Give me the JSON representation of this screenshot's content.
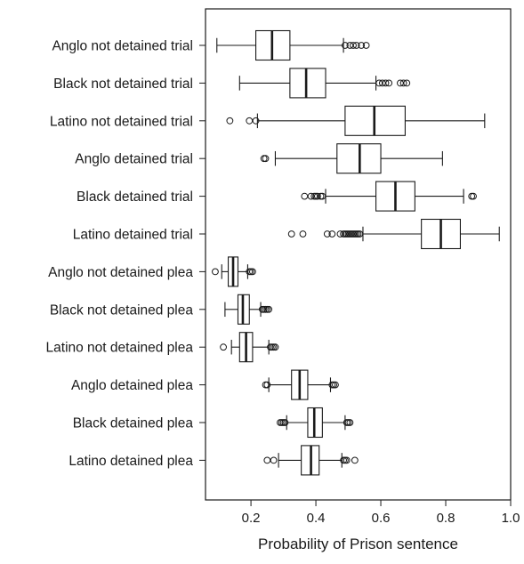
{
  "chart_data": {
    "type": "boxplot",
    "orientation": "horizontal",
    "title": "",
    "xlabel": "Probability of Prison sentence",
    "ylabel": "",
    "xlim": [
      0.06,
      1.0
    ],
    "xticks": [
      0.2,
      0.4,
      0.6,
      0.8,
      1.0
    ],
    "xtick_labels": [
      "0.2",
      "0.4",
      "0.6",
      "0.8",
      "1.0"
    ],
    "grid": false,
    "legend": "none",
    "box_fill": "#ffffff",
    "line_color": "#1a1a1a",
    "categories": [
      "Anglo not detained trial",
      "Black not detained trial",
      "Latino not detained trial",
      "Anglo detained trial",
      "Black detained trial",
      "Latino detained trial",
      "Anglo not detained plea",
      "Black not detained plea",
      "Latino not detained plea",
      "Anglo detained plea",
      "Black detained plea",
      "Latino detained plea"
    ],
    "boxes": [
      {
        "whisker_low": 0.095,
        "q1": 0.215,
        "median": 0.265,
        "q3": 0.32,
        "whisker_high": 0.485,
        "outliers": [
          0.49,
          0.505,
          0.515,
          0.525,
          0.54,
          0.555
        ]
      },
      {
        "whisker_low": 0.165,
        "q1": 0.32,
        "median": 0.37,
        "q3": 0.43,
        "whisker_high": 0.585,
        "outliers": [
          0.595,
          0.605,
          0.615,
          0.625,
          0.66,
          0.67,
          0.68
        ]
      },
      {
        "whisker_low": 0.22,
        "q1": 0.49,
        "median": 0.58,
        "q3": 0.675,
        "whisker_high": 0.92,
        "outliers": [
          0.135,
          0.195,
          0.215
        ]
      },
      {
        "whisker_low": 0.275,
        "q1": 0.465,
        "median": 0.535,
        "q3": 0.6,
        "whisker_high": 0.79,
        "outliers": [
          0.24,
          0.245
        ]
      },
      {
        "whisker_low": 0.43,
        "q1": 0.585,
        "median": 0.645,
        "q3": 0.705,
        "whisker_high": 0.855,
        "outliers": [
          0.365,
          0.385,
          0.395,
          0.4,
          0.405,
          0.415,
          0.42,
          0.88,
          0.885
        ]
      },
      {
        "whisker_low": 0.545,
        "q1": 0.725,
        "median": 0.785,
        "q3": 0.845,
        "whisker_high": 0.965,
        "outliers": [
          0.325,
          0.36,
          0.435,
          0.45,
          0.475,
          0.485,
          0.49,
          0.495,
          0.5,
          0.505,
          0.51,
          0.515,
          0.52,
          0.525,
          0.53,
          0.535
        ]
      },
      {
        "whisker_low": 0.11,
        "q1": 0.13,
        "median": 0.145,
        "q3": 0.16,
        "whisker_high": 0.19,
        "outliers": [
          0.09,
          0.195,
          0.2,
          0.205
        ]
      },
      {
        "whisker_low": 0.12,
        "q1": 0.16,
        "median": 0.175,
        "q3": 0.195,
        "whisker_high": 0.23,
        "outliers": [
          0.235,
          0.24,
          0.245,
          0.25,
          0.255
        ]
      },
      {
        "whisker_low": 0.14,
        "q1": 0.165,
        "median": 0.185,
        "q3": 0.205,
        "whisker_high": 0.255,
        "outliers": [
          0.115,
          0.26,
          0.265,
          0.27,
          0.275
        ]
      },
      {
        "whisker_low": 0.255,
        "q1": 0.325,
        "median": 0.35,
        "q3": 0.375,
        "whisker_high": 0.445,
        "outliers": [
          0.245,
          0.25,
          0.45,
          0.455,
          0.46
        ]
      },
      {
        "whisker_low": 0.31,
        "q1": 0.375,
        "median": 0.395,
        "q3": 0.42,
        "whisker_high": 0.49,
        "outliers": [
          0.29,
          0.295,
          0.3,
          0.305,
          0.495,
          0.5,
          0.505
        ]
      },
      {
        "whisker_low": 0.285,
        "q1": 0.355,
        "median": 0.385,
        "q3": 0.41,
        "whisker_high": 0.48,
        "outliers": [
          0.25,
          0.27,
          0.485,
          0.49,
          0.495,
          0.52
        ]
      }
    ]
  }
}
